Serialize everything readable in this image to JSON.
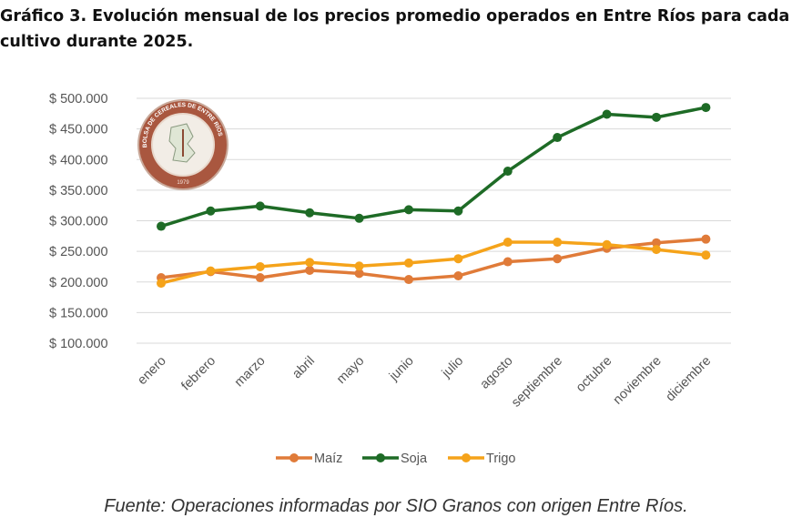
{
  "title": "Gráfico 3. Evolución mensual de los precios promedio operados en Entre Ríos para cada cultivo durante 2025.",
  "source": "Fuente: Operaciones informadas por SIO Granos con origen Entre Ríos.",
  "logo": {
    "text": "BOLSA DE CEREALES DE ENTRE RÍOS",
    "year": "1979"
  },
  "chart_data": {
    "type": "line",
    "categories": [
      "enero",
      "febrero",
      "marzo",
      "abril",
      "mayo",
      "junio",
      "julio",
      "agosto",
      "septiembre",
      "octubre",
      "noviembre",
      "diciembre"
    ],
    "ylim": [
      100000,
      500000
    ],
    "yticks": [
      100000,
      150000,
      200000,
      250000,
      300000,
      350000,
      400000,
      450000,
      500000
    ],
    "ytick_labels": [
      "$ 100.000",
      "$ 150.000",
      "$ 200.000",
      "$ 250.000",
      "$ 300.000",
      "$ 350.000",
      "$ 400.000",
      "$ 450.000",
      "$ 500.000"
    ],
    "grid": true,
    "legend": "bottom",
    "series": [
      {
        "name": "Maíz",
        "color": "#E07B39",
        "values": [
          207000,
          217000,
          207000,
          219000,
          214000,
          204000,
          210000,
          233000,
          238000,
          255000,
          264000,
          270000
        ]
      },
      {
        "name": "Soja",
        "color": "#1E6B26",
        "values": [
          291000,
          316000,
          324000,
          313000,
          304000,
          318000,
          316000,
          381000,
          436000,
          474000,
          469000,
          485000
        ]
      },
      {
        "name": "Trigo",
        "color": "#F5A31A",
        "values": [
          198000,
          218000,
          225000,
          232000,
          226000,
          231000,
          238000,
          265000,
          265000,
          261000,
          253000,
          244000
        ]
      }
    ]
  }
}
